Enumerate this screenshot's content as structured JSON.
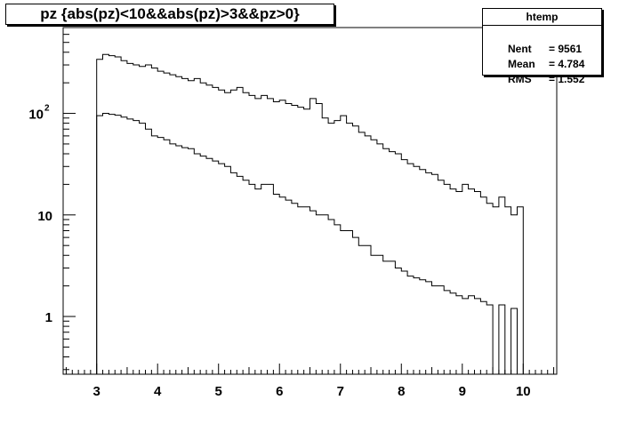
{
  "title": "pz {abs(pz)<10&&abs(pz)>3&&pz>0}",
  "stats": {
    "name": "htemp",
    "rows": [
      {
        "label": "Nent",
        "value": "9561"
      },
      {
        "label": "Mean",
        "value": "4.784"
      },
      {
        "label": "RMS",
        "value": "1.552"
      }
    ]
  },
  "chart_data": {
    "type": "line",
    "style": "step-histogram",
    "title": "pz {abs(pz)<10&&abs(pz)>3&&pz>0}",
    "xlabel": "",
    "ylabel": "",
    "xlim": [
      2.45,
      10.55
    ],
    "ylim": [
      0.27,
      700
    ],
    "log_y": true,
    "x_ticks": [
      3,
      4,
      5,
      6,
      7,
      8,
      9,
      10
    ],
    "y_ticks": [
      1,
      10,
      100
    ],
    "y_tick_labels": [
      "1",
      "10",
      "10^2"
    ],
    "bins": {
      "start": 3,
      "end": 10,
      "count": 70
    },
    "series": [
      {
        "values": [
          340,
          380,
          370,
          360,
          330,
          310,
          300,
          290,
          300,
          280,
          260,
          250,
          240,
          230,
          220,
          210,
          220,
          200,
          190,
          180,
          170,
          160,
          170,
          180,
          160,
          150,
          140,
          150,
          140,
          130,
          135,
          125,
          120,
          115,
          110,
          140,
          125,
          90,
          80,
          85,
          95,
          80,
          75,
          65,
          60,
          55,
          50,
          45,
          42,
          40,
          35,
          32,
          30,
          28,
          26,
          25,
          22,
          20,
          18,
          17,
          20,
          18,
          17,
          15,
          13,
          12,
          15,
          12,
          10,
          12
        ],
        "color": "#000000"
      },
      {
        "values": [
          95,
          100,
          98,
          96,
          92,
          88,
          85,
          80,
          70,
          60,
          58,
          55,
          50,
          48,
          46,
          45,
          40,
          38,
          36,
          34,
          32,
          30,
          26,
          24,
          22,
          20,
          18,
          20,
          20,
          16,
          15,
          14,
          13,
          12,
          12,
          11,
          10,
          10,
          9,
          8,
          7,
          7,
          6,
          5,
          5,
          4,
          4,
          3.5,
          3.5,
          3,
          2.8,
          2.5,
          2.4,
          2.3,
          2.2,
          2,
          2,
          1.8,
          1.7,
          1.6,
          1.5,
          1.6,
          1.5,
          1.4,
          1.3,
          0.1,
          1.3,
          0.1,
          1.2,
          0.1
        ],
        "color": "#000000"
      }
    ],
    "grid": false,
    "legend": "none"
  },
  "colors": {
    "line": "#000000",
    "background": "#ffffff",
    "frame": "#000000"
  }
}
